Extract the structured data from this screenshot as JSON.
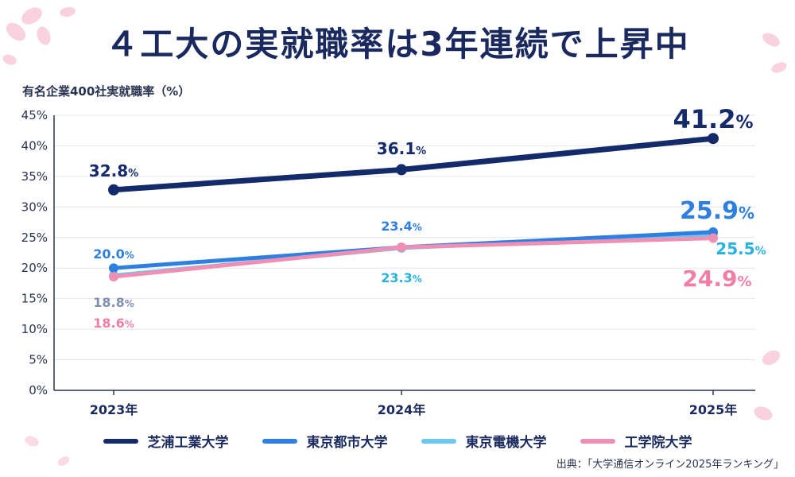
{
  "title": "４工大の実就職率は3年連続で上昇中",
  "axis_unit_label": "有名企業400社実就職率（%）",
  "source": "出典：「大学通信オンライン2025年ランキング」",
  "colors": {
    "navy": "#142b6b",
    "blue": "#2f7fe0",
    "lightblue": "#6cc8f0",
    "pink": "#ef8fb3",
    "grid": "#e3e6ee"
  },
  "chart_data": {
    "type": "line",
    "categories": [
      "2023年",
      "2024年",
      "2025年"
    ],
    "ylim": [
      0,
      45
    ],
    "yticks": [
      "0%",
      "5%",
      "10%",
      "15%",
      "20%",
      "25%",
      "30%",
      "35%",
      "40%",
      "45%"
    ],
    "grid": true,
    "legend_position": "bottom",
    "series": [
      {
        "name": "芝浦工業大学",
        "color": "#142b6b",
        "values": [
          32.8,
          36.1,
          41.2
        ],
        "labels": [
          "32.8%",
          "36.1%",
          "41.2%"
        ]
      },
      {
        "name": "東京都市大学",
        "color": "#2f7fe0",
        "values": [
          20.0,
          23.4,
          25.9
        ],
        "labels": [
          "20.0%",
          "23.4%",
          "25.9%"
        ]
      },
      {
        "name": "東京電機大学",
        "color": "#6cc8f0",
        "values": [
          18.8,
          23.3,
          25.5
        ],
        "labels": [
          "18.8%",
          "23.3%",
          "25.5%"
        ]
      },
      {
        "name": "工学院大学",
        "color": "#ef8fb3",
        "values": [
          18.6,
          23.4,
          24.9
        ],
        "labels": [
          "18.6%",
          "",
          "24.9%"
        ]
      }
    ]
  }
}
